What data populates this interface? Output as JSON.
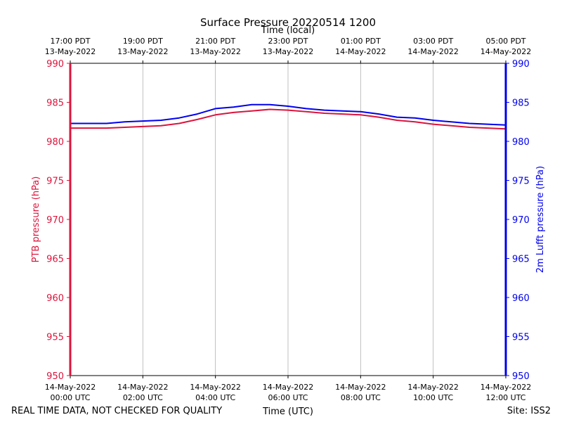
{
  "chart_data": {
    "type": "line",
    "title": "Surface Pressure 20220514 1200",
    "top_xlabel": "Time (local)",
    "xlabel": "Time (UTC)",
    "ylabel_left": "PTB pressure (hPa)",
    "ylabel_right": "2m Lufft pressure (hPa)",
    "ylim": [
      950,
      990
    ],
    "yticks": [
      950,
      955,
      960,
      965,
      970,
      975,
      980,
      985,
      990
    ],
    "xlim_hours": [
      0,
      12
    ],
    "grid": "vertical",
    "x_ticks_utc": [
      {
        "hour": 0,
        "date": "14-May-2022",
        "time": "00:00 UTC"
      },
      {
        "hour": 2,
        "date": "14-May-2022",
        "time": "02:00 UTC"
      },
      {
        "hour": 4,
        "date": "14-May-2022",
        "time": "04:00 UTC"
      },
      {
        "hour": 6,
        "date": "14-May-2022",
        "time": "06:00 UTC"
      },
      {
        "hour": 8,
        "date": "14-May-2022",
        "time": "08:00 UTC"
      },
      {
        "hour": 10,
        "date": "14-May-2022",
        "time": "10:00 UTC"
      },
      {
        "hour": 12,
        "date": "14-May-2022",
        "time": "12:00 UTC"
      }
    ],
    "x_ticks_local": [
      {
        "hour": 0,
        "time": "17:00 PDT",
        "date": "13-May-2022"
      },
      {
        "hour": 2,
        "time": "19:00 PDT",
        "date": "13-May-2022"
      },
      {
        "hour": 4,
        "time": "21:00 PDT",
        "date": "13-May-2022"
      },
      {
        "hour": 6,
        "time": "23:00 PDT",
        "date": "13-May-2022"
      },
      {
        "hour": 8,
        "time": "01:00 PDT",
        "date": "14-May-2022"
      },
      {
        "hour": 10,
        "time": "03:00 PDT",
        "date": "14-May-2022"
      },
      {
        "hour": 12,
        "time": "05:00 PDT",
        "date": "14-May-2022"
      }
    ],
    "series": [
      {
        "name": "PTB pressure",
        "axis": "left",
        "color": "#dc143c",
        "x": [
          0,
          0.5,
          1,
          1.5,
          2,
          2.5,
          3,
          3.5,
          4,
          4.5,
          5,
          5.5,
          6,
          6.5,
          7,
          7.5,
          8,
          8.5,
          9,
          9.5,
          10,
          10.5,
          11,
          11.5,
          12
        ],
        "y": [
          981.7,
          981.7,
          981.7,
          981.8,
          981.9,
          982.0,
          982.3,
          982.8,
          983.4,
          983.7,
          983.9,
          984.1,
          984.0,
          983.8,
          983.6,
          983.5,
          983.4,
          983.1,
          982.7,
          982.5,
          982.2,
          982.0,
          981.8,
          981.7,
          981.6
        ]
      },
      {
        "name": "2m Lufft pressure",
        "axis": "right",
        "color": "#0000ee",
        "x": [
          0,
          0.5,
          1,
          1.5,
          2,
          2.5,
          3,
          3.5,
          4,
          4.5,
          5,
          5.5,
          6,
          6.5,
          7,
          7.5,
          8,
          8.5,
          9,
          9.5,
          10,
          10.5,
          11,
          11.5,
          12
        ],
        "y": [
          982.3,
          982.3,
          982.3,
          982.5,
          982.6,
          982.7,
          983.0,
          983.5,
          984.2,
          984.4,
          984.7,
          984.7,
          984.5,
          984.2,
          984.0,
          983.9,
          983.8,
          983.5,
          983.1,
          983.0,
          982.7,
          982.5,
          982.3,
          982.2,
          982.1
        ]
      }
    ]
  },
  "footer": {
    "left_note": "REAL TIME DATA, NOT CHECKED FOR QUALITY",
    "site": "Site: ISS2"
  }
}
